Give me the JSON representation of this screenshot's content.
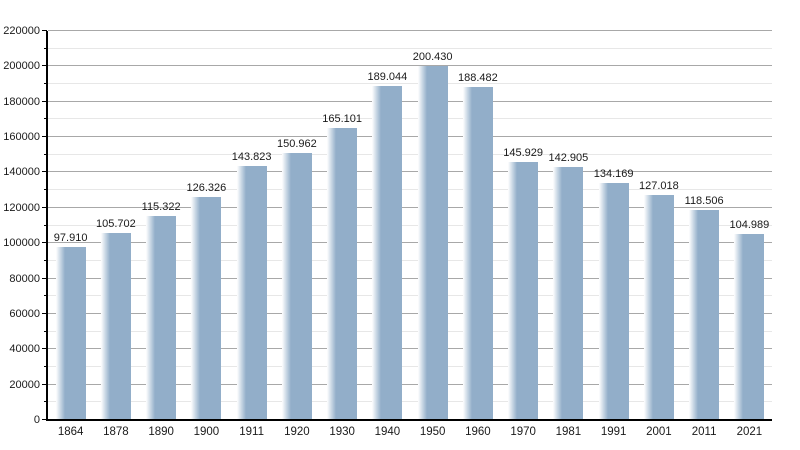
{
  "chart_data": {
    "type": "bar",
    "title": "",
    "xlabel": "",
    "ylabel": "",
    "categories": [
      "1864",
      "1878",
      "1890",
      "1900",
      "1911",
      "1920",
      "1930",
      "1940",
      "1950",
      "1960",
      "1970",
      "1981",
      "1991",
      "2001",
      "2011",
      "2021"
    ],
    "values": [
      97910,
      105702,
      115322,
      126326,
      143823,
      150962,
      165101,
      189044,
      200430,
      188482,
      145929,
      142905,
      134169,
      127018,
      118506,
      104989
    ],
    "value_labels": [
      "97.910",
      "105.702",
      "115.322",
      "126.326",
      "143.823",
      "150.962",
      "165.101",
      "189.044",
      "200.430",
      "188.482",
      "145.929",
      "142.905",
      "134.169",
      "127.018",
      "118.506",
      "104.989"
    ],
    "ylim": [
      0,
      220000
    ],
    "y_major_step": 20000,
    "y_minor_step": 10000,
    "y_tick_labels": [
      "0",
      "20000",
      "40000",
      "60000",
      "80000",
      "100000",
      "120000",
      "140000",
      "160000",
      "180000",
      "200000",
      "220000"
    ],
    "grid": "horizontal, major and minor lines, drawn behind bars",
    "legend": "none",
    "colors": {
      "bar_fill": "#92aec9",
      "bar_left_fade": "#ffffff",
      "major_gridline": "#a8a8a8",
      "minor_gridline": "#e7e7e7",
      "axis": "#000000",
      "label_text": "#1a1a1a",
      "background": "#ffffff"
    }
  }
}
